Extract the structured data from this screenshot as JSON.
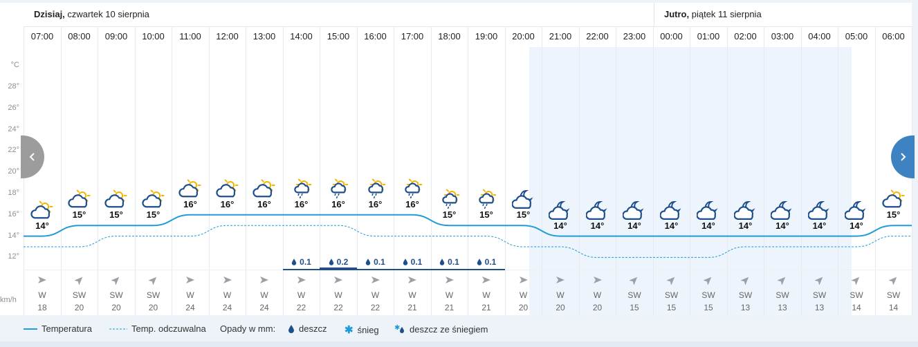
{
  "days": [
    {
      "bold": "Dzisiaj,",
      "rest": " czwartek 10 sierpnia"
    },
    {
      "bold": "Jutro,",
      "rest": " piątek 11 sierpnia"
    }
  ],
  "y_axis": {
    "unit": "°C",
    "ticks": [
      "28°",
      "26°",
      "24°",
      "22°",
      "20°",
      "18°",
      "16°",
      "14°",
      "12°"
    ]
  },
  "wind_unit": "km/h",
  "hours": [
    {
      "time": "07:00",
      "icon": "sun-behind-cloud-icon",
      "temp": 14,
      "temp_label": "14°",
      "feels": 13,
      "precip": null,
      "wind_dir": "W",
      "wind_speed": "18"
    },
    {
      "time": "08:00",
      "icon": "sun-behind-cloud-icon",
      "temp": 15,
      "temp_label": "15°",
      "feels": 13,
      "precip": null,
      "wind_dir": "SW",
      "wind_speed": "20"
    },
    {
      "time": "09:00",
      "icon": "sun-behind-cloud-icon",
      "temp": 15,
      "temp_label": "15°",
      "feels": 14,
      "precip": null,
      "wind_dir": "SW",
      "wind_speed": "20"
    },
    {
      "time": "10:00",
      "icon": "sun-behind-cloud-icon",
      "temp": 15,
      "temp_label": "15°",
      "feels": 14,
      "precip": null,
      "wind_dir": "SW",
      "wind_speed": "20"
    },
    {
      "time": "11:00",
      "icon": "sun-behind-cloud-icon",
      "temp": 16,
      "temp_label": "16°",
      "feels": 14,
      "precip": null,
      "wind_dir": "W",
      "wind_speed": "24"
    },
    {
      "time": "12:00",
      "icon": "sun-behind-cloud-icon",
      "temp": 16,
      "temp_label": "16°",
      "feels": 15,
      "precip": null,
      "wind_dir": "W",
      "wind_speed": "24"
    },
    {
      "time": "13:00",
      "icon": "sun-behind-cloud-icon",
      "temp": 16,
      "temp_label": "16°",
      "feels": 15,
      "precip": null,
      "wind_dir": "W",
      "wind_speed": "24"
    },
    {
      "time": "14:00",
      "icon": "sun-cloud-rain-icon",
      "temp": 16,
      "temp_label": "16°",
      "feels": 15,
      "precip": "0.1",
      "wind_dir": "W",
      "wind_speed": "22"
    },
    {
      "time": "15:00",
      "icon": "sun-cloud-rain-icon",
      "temp": 16,
      "temp_label": "16°",
      "feels": 15,
      "precip": "0.2",
      "wind_dir": "W",
      "wind_speed": "22"
    },
    {
      "time": "16:00",
      "icon": "sun-cloud-rain-icon",
      "temp": 16,
      "temp_label": "16°",
      "feels": 14,
      "precip": "0.1",
      "wind_dir": "W",
      "wind_speed": "22"
    },
    {
      "time": "17:00",
      "icon": "sun-cloud-rain-icon",
      "temp": 16,
      "temp_label": "16°",
      "feels": 14,
      "precip": "0.1",
      "wind_dir": "W",
      "wind_speed": "21"
    },
    {
      "time": "18:00",
      "icon": "sun-cloud-rain-icon",
      "temp": 15,
      "temp_label": "15°",
      "feels": 14,
      "precip": "0.1",
      "wind_dir": "W",
      "wind_speed": "21"
    },
    {
      "time": "19:00",
      "icon": "sun-cloud-rain-icon",
      "temp": 15,
      "temp_label": "15°",
      "feels": 14,
      "precip": "0.1",
      "wind_dir": "W",
      "wind_speed": "21"
    },
    {
      "time": "20:00",
      "icon": "moon-behind-cloud-icon",
      "temp": 15,
      "temp_label": "15°",
      "feels": 13,
      "precip": null,
      "wind_dir": "W",
      "wind_speed": "20"
    },
    {
      "time": "21:00",
      "icon": "moon-behind-cloud-icon",
      "temp": 14,
      "temp_label": "14°",
      "feels": 13,
      "precip": null,
      "wind_dir": "W",
      "wind_speed": "20"
    },
    {
      "time": "22:00",
      "icon": "moon-behind-cloud-icon",
      "temp": 14,
      "temp_label": "14°",
      "feels": 12,
      "precip": null,
      "wind_dir": "W",
      "wind_speed": "20"
    },
    {
      "time": "23:00",
      "icon": "moon-behind-cloud-icon",
      "temp": 14,
      "temp_label": "14°",
      "feels": 12,
      "precip": null,
      "wind_dir": "SW",
      "wind_speed": "15"
    },
    {
      "time": "00:00",
      "icon": "moon-behind-cloud-icon",
      "temp": 14,
      "temp_label": "14°",
      "feels": 12,
      "precip": null,
      "wind_dir": "SW",
      "wind_speed": "15"
    },
    {
      "time": "01:00",
      "icon": "moon-behind-cloud-icon",
      "temp": 14,
      "temp_label": "14°",
      "feels": 12,
      "precip": null,
      "wind_dir": "SW",
      "wind_speed": "15"
    },
    {
      "time": "02:00",
      "icon": "moon-behind-cloud-icon",
      "temp": 14,
      "temp_label": "14°",
      "feels": 13,
      "precip": null,
      "wind_dir": "SW",
      "wind_speed": "13"
    },
    {
      "time": "03:00",
      "icon": "moon-behind-cloud-icon",
      "temp": 14,
      "temp_label": "14°",
      "feels": 13,
      "precip": null,
      "wind_dir": "SW",
      "wind_speed": "13"
    },
    {
      "time": "04:00",
      "icon": "moon-behind-cloud-icon",
      "temp": 14,
      "temp_label": "14°",
      "feels": 13,
      "precip": null,
      "wind_dir": "SW",
      "wind_speed": "13"
    },
    {
      "time": "05:00",
      "icon": "moon-behind-cloud-icon",
      "temp": 14,
      "temp_label": "14°",
      "feels": 13,
      "precip": null,
      "wind_dir": "SW",
      "wind_speed": "14"
    },
    {
      "time": "06:00",
      "icon": "sun-behind-cloud-icon",
      "temp": 15,
      "temp_label": "15°",
      "feels": 14,
      "precip": null,
      "wind_dir": "SW",
      "wind_speed": "14"
    }
  ],
  "chart_data": {
    "type": "line",
    "x": [
      "07:00",
      "08:00",
      "09:00",
      "10:00",
      "11:00",
      "12:00",
      "13:00",
      "14:00",
      "15:00",
      "16:00",
      "17:00",
      "18:00",
      "19:00",
      "20:00",
      "21:00",
      "22:00",
      "23:00",
      "00:00",
      "01:00",
      "02:00",
      "03:00",
      "04:00",
      "05:00",
      "06:00"
    ],
    "series": [
      {
        "name": "Temperatura",
        "values": [
          14,
          15,
          15,
          15,
          16,
          16,
          16,
          16,
          16,
          16,
          16,
          15,
          15,
          15,
          14,
          14,
          14,
          14,
          14,
          14,
          14,
          14,
          14,
          15
        ]
      },
      {
        "name": "Temp. odczuwalna",
        "values": [
          13,
          13,
          14,
          14,
          14,
          15,
          15,
          15,
          15,
          14,
          14,
          14,
          14,
          13,
          13,
          12,
          12,
          12,
          12,
          13,
          13,
          13,
          13,
          14
        ]
      }
    ],
    "precipitation_mm": [
      null,
      null,
      null,
      null,
      null,
      null,
      null,
      0.1,
      0.2,
      0.1,
      0.1,
      0.1,
      0.1,
      null,
      null,
      null,
      null,
      null,
      null,
      null,
      null,
      null,
      null,
      null
    ],
    "ylim": [
      11,
      29
    ],
    "ylabel": "°C"
  },
  "legend": {
    "temp": "Temperatura",
    "feels": "Temp. odczuwalna",
    "precip_title": "Opady w mm:",
    "rain": "deszcz",
    "snow": "śnieg",
    "sleet": "deszcz ze śniegiem"
  },
  "colors": {
    "temp_line": "#1f9bd7",
    "precip": "#1d4f8c",
    "sun": "#f5b400",
    "cloud": "#1d4f8c",
    "night_bg": "#edf4fc",
    "next_button": "#3d83c2"
  }
}
